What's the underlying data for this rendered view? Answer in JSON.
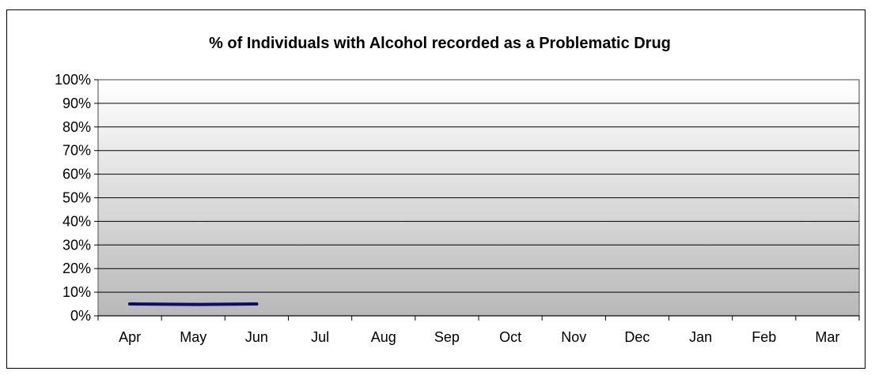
{
  "chart_data": {
    "type": "line",
    "title": "% of Individuals with Alcohol recorded as a Problematic Drug",
    "xlabel": "",
    "ylabel": "",
    "categories": [
      "Apr",
      "May",
      "Jun",
      "Jul",
      "Aug",
      "Sep",
      "Oct",
      "Nov",
      "Dec",
      "Jan",
      "Feb",
      "Mar"
    ],
    "y_ticks": [
      "0%",
      "10%",
      "20%",
      "30%",
      "40%",
      "50%",
      "60%",
      "70%",
      "80%",
      "90%",
      "100%"
    ],
    "ylim": [
      0,
      100
    ],
    "grid": true,
    "legend": "none",
    "series": [
      {
        "values": [
          5.0,
          4.8,
          5.0,
          null,
          null,
          null,
          null,
          null,
          null,
          null,
          null,
          null
        ],
        "color": "#0c0c6e"
      }
    ],
    "plot_background": "gradient white to gray"
  }
}
